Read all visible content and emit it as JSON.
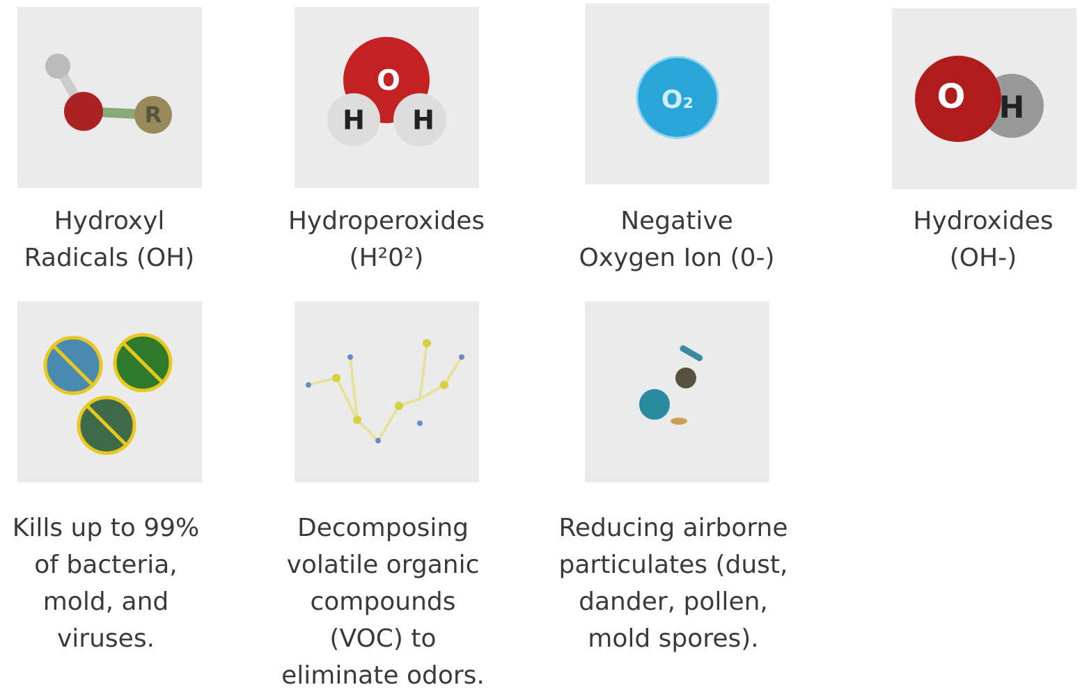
{
  "molecules": [
    {
      "lines": [
        "Hydroxyl",
        "Radicals (OH)"
      ],
      "icon_text": [
        "R"
      ]
    },
    {
      "lines": [
        "Hydroperoxides",
        "(H²0²)"
      ],
      "icon_text": [
        "O",
        "H",
        "H"
      ]
    },
    {
      "lines": [
        "Negative",
        "Oxygen Ion (0-)"
      ],
      "icon_text": [
        "O₂"
      ]
    },
    {
      "lines": [
        "Hydroxides",
        "(OH-)"
      ],
      "icon_text": [
        "O",
        "H"
      ]
    }
  ],
  "benefits": [
    {
      "lines": [
        "Kills up to 99%",
        "of bacteria,",
        "mold, and",
        "viruses."
      ]
    },
    {
      "lines": [
        "Decomposing",
        "volatile organic",
        "compounds",
        "(VOC) to",
        "eliminate odors."
      ]
    },
    {
      "lines": [
        "Reducing airborne",
        "particulates (dust,",
        "dander, pollen,",
        "mold spores)."
      ]
    }
  ]
}
